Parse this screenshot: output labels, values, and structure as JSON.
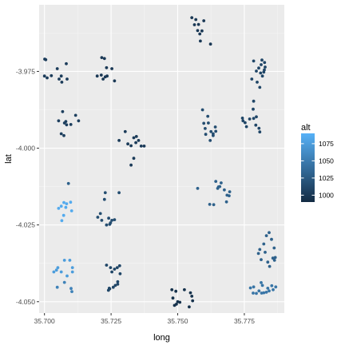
{
  "chart_data": {
    "type": "scatter",
    "xlabel": "long",
    "ylabel": "lat",
    "xlim": [
      35.698,
      35.79
    ],
    "ylim": [
      -4.0537,
      -3.9533
    ],
    "x_ticks": [
      35.7,
      35.725,
      35.75,
      35.775
    ],
    "x_tick_labels": [
      "35.700",
      "35.725",
      "35.750",
      "35.775"
    ],
    "y_ticks": [
      -3.975,
      -4.0,
      -4.025,
      -4.05
    ],
    "y_tick_labels": [
      "-3.975",
      "-4.000",
      "-4.025",
      "-4.050"
    ],
    "grid": true,
    "legend": {
      "title": "alt",
      "position": "right",
      "range": [
        990,
        1090
      ],
      "breaks": [
        1000,
        1025,
        1050,
        1075
      ],
      "labels": [
        "1000",
        "1025",
        "1050",
        "1075"
      ],
      "color_low": "#132B43",
      "color_high": "#56B1F7"
    },
    "colors": {
      "panel": "#ebebeb",
      "grid_major": "#ffffff",
      "grid_minor": "#f5f5f5"
    },
    "points": [
      {
        "x": 35.7,
        "y": -3.9765,
        "alt": 1003
      },
      {
        "x": 35.7005,
        "y": -3.9712,
        "alt": 1003
      },
      {
        "x": 35.701,
        "y": -3.9771,
        "alt": 1003
      },
      {
        "x": 35.7026,
        "y": -3.9764,
        "alt": 1003
      },
      {
        "x": 35.7048,
        "y": -3.9741,
        "alt": 1003
      },
      {
        "x": 35.7055,
        "y": -3.9775,
        "alt": 1003
      },
      {
        "x": 35.7063,
        "y": -3.9765,
        "alt": 1003
      },
      {
        "x": 35.7065,
        "y": -3.9785,
        "alt": 1003
      },
      {
        "x": 35.7082,
        "y": -3.9725,
        "alt": 1003
      },
      {
        "x": 35.7085,
        "y": -3.9775,
        "alt": 1003
      },
      {
        "x": 35.7001,
        "y": -3.971,
        "alt": 1003
      },
      {
        "x": 35.7198,
        "y": -3.9765,
        "alt": 1000
      },
      {
        "x": 35.7213,
        "y": -3.9762,
        "alt": 1000
      },
      {
        "x": 35.7215,
        "y": -3.9705,
        "alt": 1000
      },
      {
        "x": 35.722,
        "y": -3.9775,
        "alt": 1000
      },
      {
        "x": 35.7225,
        "y": -3.9708,
        "alt": 1000
      },
      {
        "x": 35.7228,
        "y": -3.9768,
        "alt": 1000
      },
      {
        "x": 35.7233,
        "y": -3.9738,
        "alt": 1000
      },
      {
        "x": 35.7235,
        "y": -3.9765,
        "alt": 1000
      },
      {
        "x": 35.7253,
        "y": -3.9741,
        "alt": 1000
      },
      {
        "x": 35.7263,
        "y": -3.9781,
        "alt": 1000
      },
      {
        "x": 35.7068,
        "y": -3.9881,
        "alt": 1005
      },
      {
        "x": 35.7053,
        "y": -3.9911,
        "alt": 1005
      },
      {
        "x": 35.7063,
        "y": -3.9953,
        "alt": 1005
      },
      {
        "x": 35.7073,
        "y": -3.9959,
        "alt": 1005
      },
      {
        "x": 35.7075,
        "y": -3.9918,
        "alt": 1005
      },
      {
        "x": 35.708,
        "y": -3.9913,
        "alt": 1005
      },
      {
        "x": 35.7083,
        "y": -3.9924,
        "alt": 1005
      },
      {
        "x": 35.7099,
        "y": -3.9923,
        "alt": 1005
      },
      {
        "x": 35.7128,
        "y": -3.9911,
        "alt": 1005
      },
      {
        "x": 35.7117,
        "y": -3.9893,
        "alt": 1005
      },
      {
        "x": 35.728,
        "y": -3.9975,
        "alt": 1002
      },
      {
        "x": 35.7303,
        "y": -3.9946,
        "alt": 1002
      },
      {
        "x": 35.7313,
        "y": -3.9986,
        "alt": 1002
      },
      {
        "x": 35.7325,
        "y": -3.9992,
        "alt": 1002
      },
      {
        "x": 35.7335,
        "y": -3.9966,
        "alt": 1002
      },
      {
        "x": 35.7343,
        "y": -3.9982,
        "alt": 1002
      },
      {
        "x": 35.7345,
        "y": -3.9962,
        "alt": 1002
      },
      {
        "x": 35.7353,
        "y": -3.9975,
        "alt": 1002
      },
      {
        "x": 35.7363,
        "y": -3.9993,
        "alt": 1002
      },
      {
        "x": 35.7374,
        "y": -3.9993,
        "alt": 1002
      },
      {
        "x": 35.7325,
        "y": -4.0055,
        "alt": 1002
      },
      {
        "x": 35.7335,
        "y": -4.0033,
        "alt": 1002
      },
      {
        "x": 35.7063,
        "y": -4.0189,
        "alt": 1085
      },
      {
        "x": 35.7053,
        "y": -4.0196,
        "alt": 1085
      },
      {
        "x": 35.7065,
        "y": -4.0236,
        "alt": 1085
      },
      {
        "x": 35.7072,
        "y": -4.0219,
        "alt": 1085
      },
      {
        "x": 35.7073,
        "y": -4.0177,
        "alt": 1085
      },
      {
        "x": 35.708,
        "y": -4.0193,
        "alt": 1085
      },
      {
        "x": 35.7083,
        "y": -4.0181,
        "alt": 1085
      },
      {
        "x": 35.7098,
        "y": -4.0176,
        "alt": 1085
      },
      {
        "x": 35.7102,
        "y": -4.0204,
        "alt": 1085
      },
      {
        "x": 35.709,
        "y": -4.0115,
        "alt": 1030
      },
      {
        "x": 35.72,
        "y": -4.0225,
        "alt": 1015
      },
      {
        "x": 35.721,
        "y": -4.0213,
        "alt": 1015
      },
      {
        "x": 35.7215,
        "y": -4.0235,
        "alt": 1015
      },
      {
        "x": 35.7225,
        "y": -4.0167,
        "alt": 1015
      },
      {
        "x": 35.7233,
        "y": -4.025,
        "alt": 1015
      },
      {
        "x": 35.7245,
        "y": -4.0248,
        "alt": 1015
      },
      {
        "x": 35.7248,
        "y": -4.0243,
        "alt": 1015
      },
      {
        "x": 35.7253,
        "y": -4.0235,
        "alt": 1015
      },
      {
        "x": 35.7263,
        "y": -4.0233,
        "alt": 1015
      },
      {
        "x": 35.7228,
        "y": -4.0145,
        "alt": 1015
      },
      {
        "x": 35.728,
        "y": -4.0145,
        "alt": 1015
      },
      {
        "x": 35.7241,
        "y": -4.0228,
        "alt": 1015
      },
      {
        "x": 35.7035,
        "y": -4.0403,
        "alt": 1075
      },
      {
        "x": 35.7045,
        "y": -4.0397,
        "alt": 1075
      },
      {
        "x": 35.705,
        "y": -4.0389,
        "alt": 1075
      },
      {
        "x": 35.7063,
        "y": -4.0403,
        "alt": 1075
      },
      {
        "x": 35.7075,
        "y": -4.0365,
        "alt": 1075
      },
      {
        "x": 35.7085,
        "y": -4.0416,
        "alt": 1075
      },
      {
        "x": 35.7095,
        "y": -4.0365,
        "alt": 1075
      },
      {
        "x": 35.7105,
        "y": -4.0403,
        "alt": 1075
      },
      {
        "x": 35.7105,
        "y": -4.0389,
        "alt": 1075
      },
      {
        "x": 35.7048,
        "y": -4.0453,
        "alt": 1055
      },
      {
        "x": 35.7075,
        "y": -4.0437,
        "alt": 1055
      },
      {
        "x": 35.71,
        "y": -4.0457,
        "alt": 1055
      },
      {
        "x": 35.7103,
        "y": -4.0467,
        "alt": 1055
      },
      {
        "x": 35.7233,
        "y": -4.0381,
        "alt": 1010
      },
      {
        "x": 35.7248,
        "y": -4.0389,
        "alt": 1010
      },
      {
        "x": 35.7253,
        "y": -4.0403,
        "alt": 1010
      },
      {
        "x": 35.7263,
        "y": -4.0394,
        "alt": 1010
      },
      {
        "x": 35.7273,
        "y": -4.0389,
        "alt": 1010
      },
      {
        "x": 35.7282,
        "y": -4.0383,
        "alt": 1010
      },
      {
        "x": 35.7284,
        "y": -4.0409,
        "alt": 1010
      },
      {
        "x": 35.7275,
        "y": -4.0435,
        "alt": 1010
      },
      {
        "x": 35.7258,
        "y": -4.0453,
        "alt": 1010
      },
      {
        "x": 35.7245,
        "y": -4.0458,
        "alt": 1010
      },
      {
        "x": 35.724,
        "y": -4.0463,
        "alt": 1010
      },
      {
        "x": 35.7243,
        "y": -4.0456,
        "alt": 1010
      },
      {
        "x": 35.7266,
        "y": -4.0447,
        "alt": 1010
      },
      {
        "x": 35.7275,
        "y": -4.0443,
        "alt": 1010
      },
      {
        "x": 35.7478,
        "y": -4.0461,
        "alt": 995
      },
      {
        "x": 35.7493,
        "y": -4.0466,
        "alt": 995
      },
      {
        "x": 35.7488,
        "y": -4.0512,
        "alt": 995
      },
      {
        "x": 35.7495,
        "y": -4.0508,
        "alt": 995
      },
      {
        "x": 35.75,
        "y": -4.05,
        "alt": 995
      },
      {
        "x": 35.7508,
        "y": -4.0502,
        "alt": 995
      },
      {
        "x": 35.7525,
        "y": -4.0461,
        "alt": 995
      },
      {
        "x": 35.7548,
        "y": -4.0471,
        "alt": 995
      },
      {
        "x": 35.7553,
        "y": -4.0482,
        "alt": 995
      },
      {
        "x": 35.7556,
        "y": -4.0497,
        "alt": 995
      },
      {
        "x": 35.7543,
        "y": -4.0517,
        "alt": 995
      },
      {
        "x": 35.7482,
        "y": -4.0488,
        "alt": 995
      },
      {
        "x": 35.7553,
        "y": -3.9575,
        "alt": 1000
      },
      {
        "x": 35.7563,
        "y": -3.9598,
        "alt": 1000
      },
      {
        "x": 35.7568,
        "y": -3.9581,
        "alt": 1000
      },
      {
        "x": 35.7575,
        "y": -3.9617,
        "alt": 1000
      },
      {
        "x": 35.7578,
        "y": -3.9597,
        "alt": 1000
      },
      {
        "x": 35.7583,
        "y": -3.9628,
        "alt": 1000
      },
      {
        "x": 35.7585,
        "y": -3.9651,
        "alt": 1000
      },
      {
        "x": 35.7591,
        "y": -3.9618,
        "alt": 1000
      },
      {
        "x": 35.7623,
        "y": -3.9661,
        "alt": 1000
      },
      {
        "x": 35.7598,
        "y": -3.9585,
        "alt": 1000
      },
      {
        "x": 35.7593,
        "y": -3.9875,
        "alt": 1015
      },
      {
        "x": 35.7598,
        "y": -3.9919,
        "alt": 1015
      },
      {
        "x": 35.7603,
        "y": -3.9936,
        "alt": 1015
      },
      {
        "x": 35.7605,
        "y": -3.9955,
        "alt": 1015
      },
      {
        "x": 35.7613,
        "y": -3.9896,
        "alt": 1015
      },
      {
        "x": 35.7625,
        "y": -3.9946,
        "alt": 1015
      },
      {
        "x": 35.7633,
        "y": -3.9953,
        "alt": 1015
      },
      {
        "x": 35.7633,
        "y": -3.9959,
        "alt": 1015
      },
      {
        "x": 35.7643,
        "y": -3.9945,
        "alt": 1015
      },
      {
        "x": 35.7641,
        "y": -3.9931,
        "alt": 1015
      },
      {
        "x": 35.7622,
        "y": -3.9975,
        "alt": 1015
      },
      {
        "x": 35.7615,
        "y": -3.9918,
        "alt": 1015
      },
      {
        "x": 35.7575,
        "y": -4.0131,
        "alt": 1030
      },
      {
        "x": 35.762,
        "y": -4.0183,
        "alt": 1030
      },
      {
        "x": 35.7635,
        "y": -4.0184,
        "alt": 1030
      },
      {
        "x": 35.7643,
        "y": -4.0108,
        "alt": 1030
      },
      {
        "x": 35.765,
        "y": -4.0131,
        "alt": 1030
      },
      {
        "x": 35.7653,
        "y": -4.0126,
        "alt": 1030
      },
      {
        "x": 35.7658,
        "y": -4.0125,
        "alt": 1030
      },
      {
        "x": 35.7663,
        "y": -4.0113,
        "alt": 1030
      },
      {
        "x": 35.7675,
        "y": -4.0136,
        "alt": 1030
      },
      {
        "x": 35.7683,
        "y": -4.0175,
        "alt": 1030
      },
      {
        "x": 35.7685,
        "y": -4.0153,
        "alt": 1030
      },
      {
        "x": 35.7695,
        "y": -4.0142,
        "alt": 1030
      },
      {
        "x": 35.7693,
        "y": -4.0155,
        "alt": 1030
      },
      {
        "x": 35.7743,
        "y": -3.9902,
        "alt": 1010
      },
      {
        "x": 35.7745,
        "y": -3.9911,
        "alt": 1010
      },
      {
        "x": 35.7753,
        "y": -3.9917,
        "alt": 1010
      },
      {
        "x": 35.7758,
        "y": -3.993,
        "alt": 1010
      },
      {
        "x": 35.777,
        "y": -3.9905,
        "alt": 1010
      },
      {
        "x": 35.7783,
        "y": -3.9873,
        "alt": 1010
      },
      {
        "x": 35.7785,
        "y": -3.9903,
        "alt": 1010
      },
      {
        "x": 35.7793,
        "y": -3.9925,
        "alt": 1010
      },
      {
        "x": 35.7795,
        "y": -3.9898,
        "alt": 1010
      },
      {
        "x": 35.7808,
        "y": -3.9947,
        "alt": 1010
      },
      {
        "x": 35.7805,
        "y": -3.9935,
        "alt": 1010
      },
      {
        "x": 35.7785,
        "y": -3.9847,
        "alt": 1010
      },
      {
        "x": 35.7778,
        "y": -3.9775,
        "alt": 1010
      },
      {
        "x": 35.7785,
        "y": -3.9716,
        "alt": 1010
      },
      {
        "x": 35.7795,
        "y": -3.9749,
        "alt": 1010
      },
      {
        "x": 35.7804,
        "y": -3.9739,
        "alt": 1010
      },
      {
        "x": 35.7811,
        "y": -3.9755,
        "alt": 1010
      },
      {
        "x": 35.7813,
        "y": -3.9728,
        "alt": 1010
      },
      {
        "x": 35.7823,
        "y": -3.9752,
        "alt": 1010
      },
      {
        "x": 35.7826,
        "y": -3.9721,
        "alt": 1010
      },
      {
        "x": 35.7828,
        "y": -3.9736,
        "alt": 1010
      },
      {
        "x": 35.7825,
        "y": -3.9745,
        "alt": 1010
      },
      {
        "x": 35.7818,
        "y": -3.9765,
        "alt": 1010
      },
      {
        "x": 35.7808,
        "y": -3.9802,
        "alt": 1010
      },
      {
        "x": 35.7798,
        "y": -3.9785,
        "alt": 1010
      },
      {
        "x": 35.7816,
        "y": -3.9713,
        "alt": 1010
      },
      {
        "x": 35.7803,
        "y": -4.0343,
        "alt": 1030
      },
      {
        "x": 35.7808,
        "y": -4.033,
        "alt": 1030
      },
      {
        "x": 35.7813,
        "y": -4.0363,
        "alt": 1030
      },
      {
        "x": 35.7823,
        "y": -4.0312,
        "alt": 1030
      },
      {
        "x": 35.7828,
        "y": -4.0339,
        "alt": 1030
      },
      {
        "x": 35.7833,
        "y": -4.0285,
        "alt": 1030
      },
      {
        "x": 35.7838,
        "y": -4.0371,
        "alt": 1030
      },
      {
        "x": 35.7843,
        "y": -4.0275,
        "alt": 1030
      },
      {
        "x": 35.7845,
        "y": -4.0385,
        "alt": 1030
      },
      {
        "x": 35.7852,
        "y": -4.0297,
        "alt": 1030
      },
      {
        "x": 35.7857,
        "y": -4.0358,
        "alt": 1030
      },
      {
        "x": 35.7862,
        "y": -4.0325,
        "alt": 1030
      },
      {
        "x": 35.7866,
        "y": -4.0356,
        "alt": 1030
      },
      {
        "x": 35.7863,
        "y": -4.0365,
        "alt": 1030
      },
      {
        "x": 35.7773,
        "y": -4.0455,
        "alt": 1045
      },
      {
        "x": 35.7783,
        "y": -4.0472,
        "alt": 1045
      },
      {
        "x": 35.7795,
        "y": -4.0473,
        "alt": 1045
      },
      {
        "x": 35.7805,
        "y": -4.0465,
        "alt": 1045
      },
      {
        "x": 35.7815,
        "y": -4.0472,
        "alt": 1045
      },
      {
        "x": 35.7818,
        "y": -4.0447,
        "alt": 1045
      },
      {
        "x": 35.7823,
        "y": -4.0471,
        "alt": 1045
      },
      {
        "x": 35.7833,
        "y": -4.0469,
        "alt": 1045
      },
      {
        "x": 35.7838,
        "y": -4.0456,
        "alt": 1045
      },
      {
        "x": 35.7843,
        "y": -4.0465,
        "alt": 1045
      },
      {
        "x": 35.7853,
        "y": -4.0448,
        "alt": 1045
      },
      {
        "x": 35.7858,
        "y": -4.0461,
        "alt": 1045
      },
      {
        "x": 35.7868,
        "y": -4.0452,
        "alt": 1045
      },
      {
        "x": 35.7813,
        "y": -4.0438,
        "alt": 1045
      },
      {
        "x": 35.7785,
        "y": -4.0452,
        "alt": 1045
      }
    ]
  }
}
